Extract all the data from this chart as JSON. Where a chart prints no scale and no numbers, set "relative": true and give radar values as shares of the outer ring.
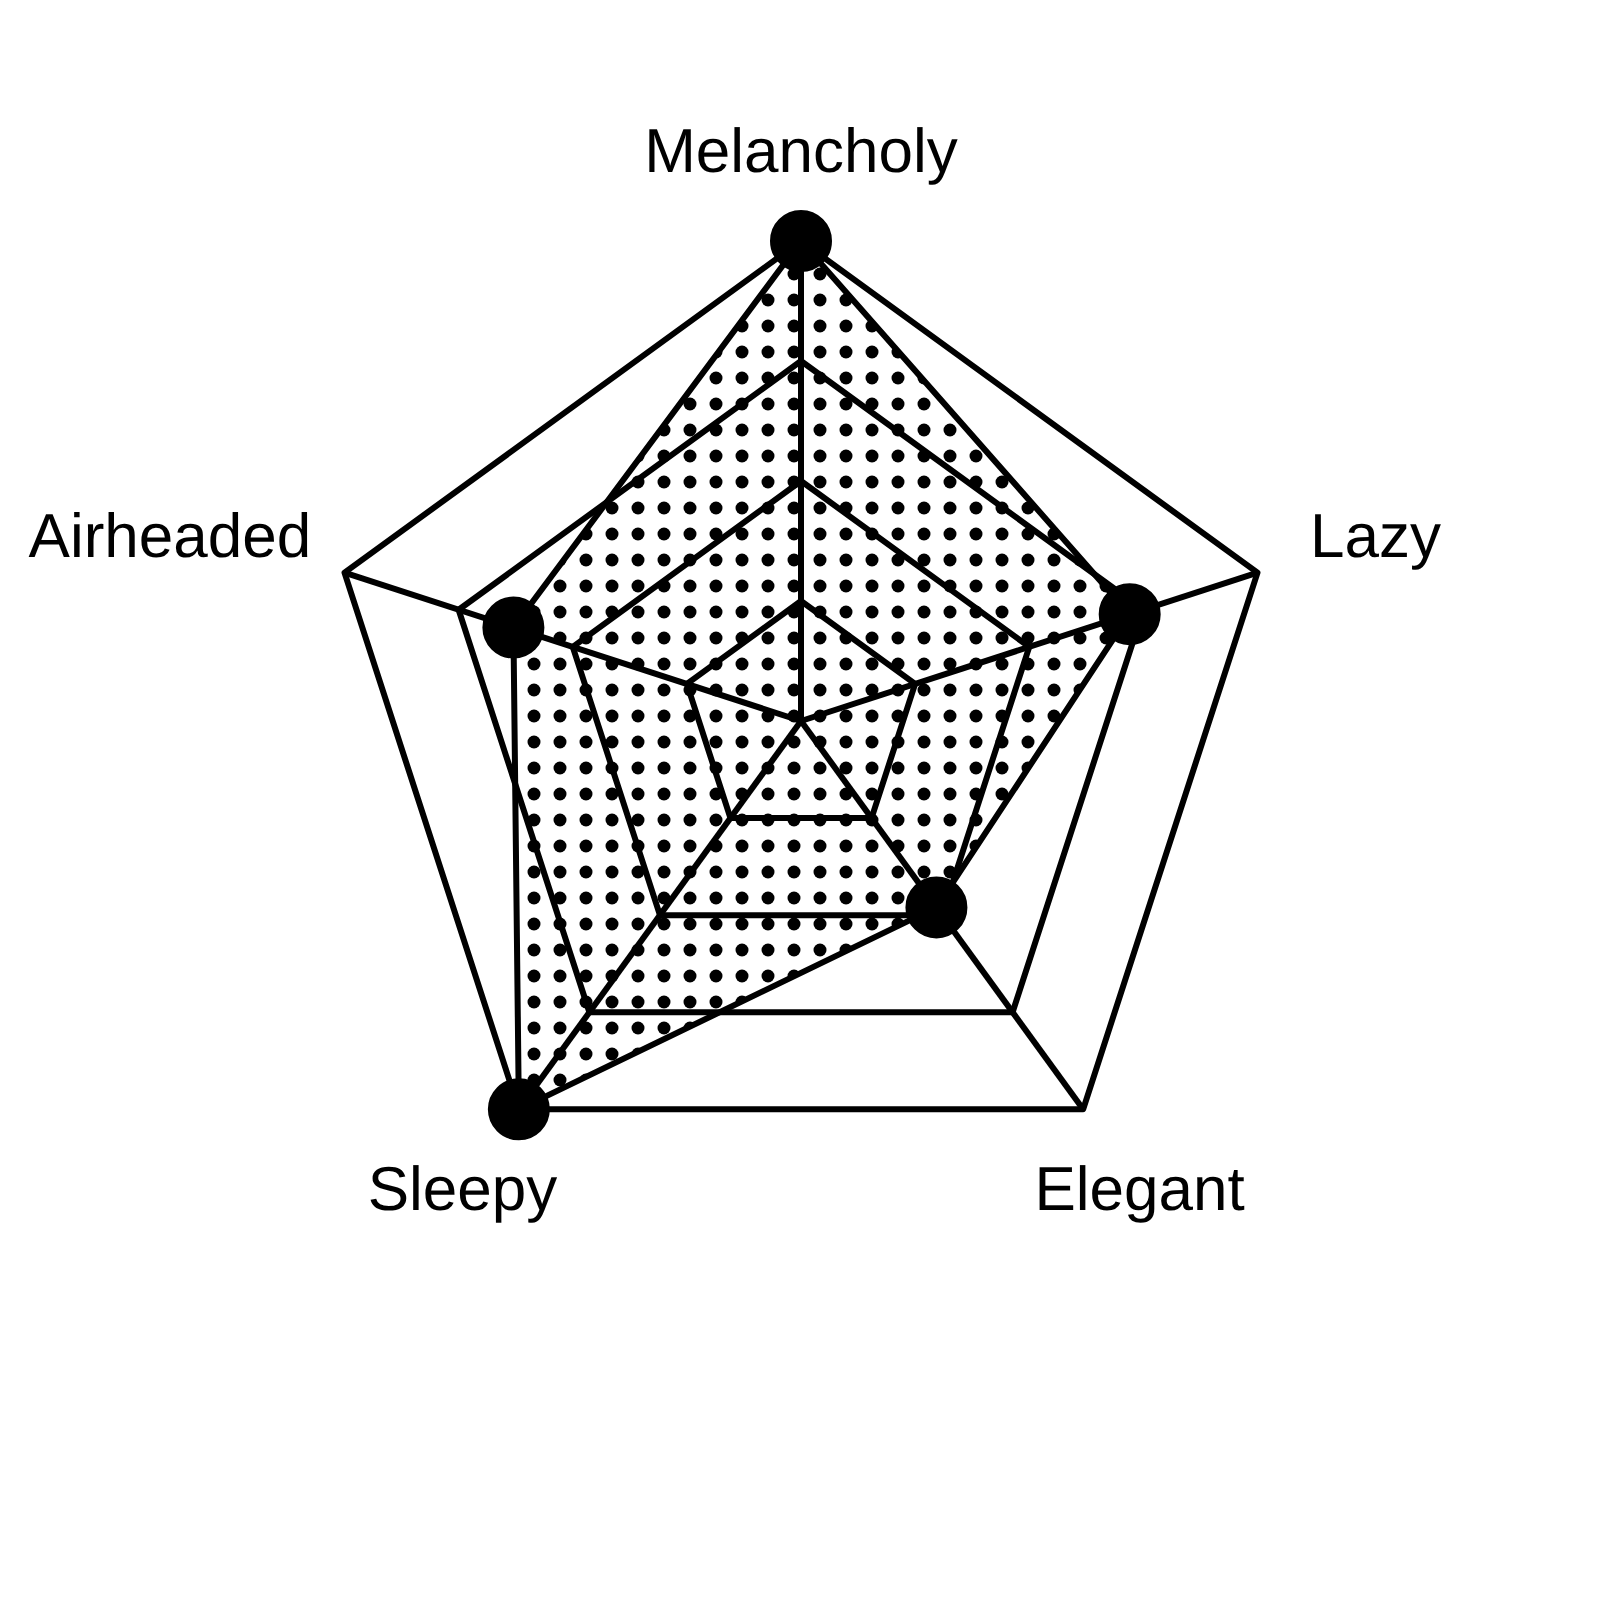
{
  "chart_data": {
    "type": "radar",
    "categories": [
      "Melancholy",
      "Lazy",
      "Elegant",
      "Sleepy",
      "Airheaded"
    ],
    "relative": true,
    "grid": true,
    "marker": "circle",
    "line_style": "solid",
    "series": [
      {
        "color": "#000000",
        "values": [
          1,
          0.72,
          0.48,
          1,
          0.63
        ]
      }
    ]
  }
}
